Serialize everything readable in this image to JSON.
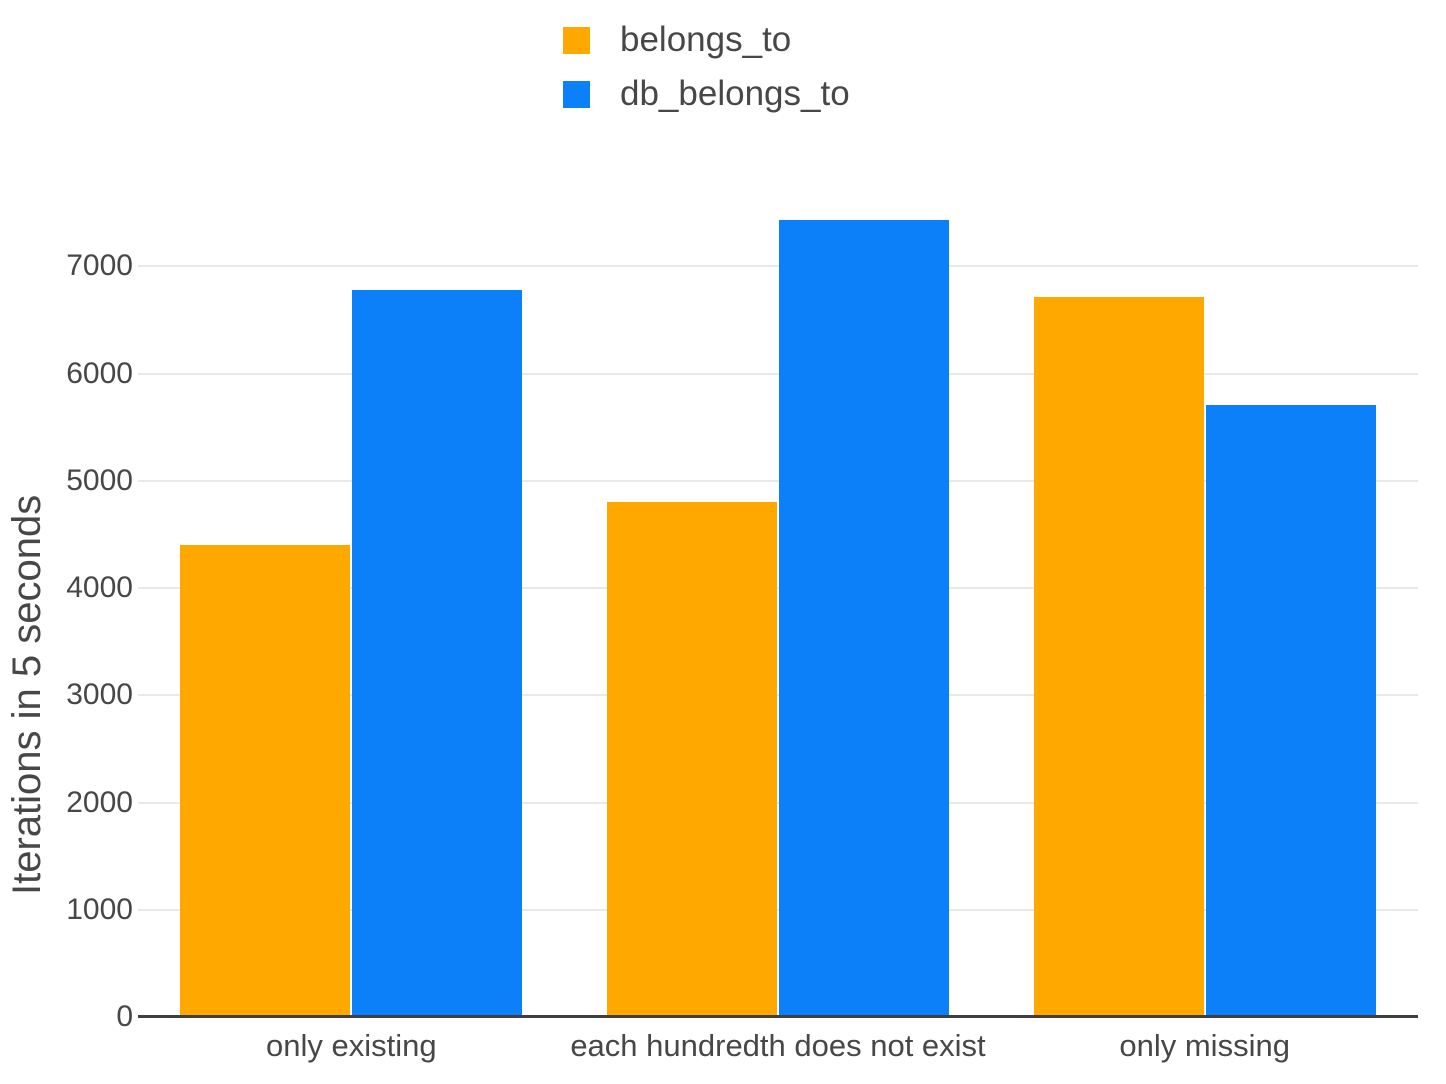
{
  "chart_data": {
    "type": "bar",
    "categories": [
      "only existing",
      "each hundredth does not exist",
      "only missing"
    ],
    "series": [
      {
        "name": "belongs_to",
        "color": "#ffa800",
        "values": [
          4400,
          4800,
          6720
        ]
      },
      {
        "name": "db_belongs_to",
        "color": "#0b80f8",
        "values": [
          6780,
          7430,
          5710
        ]
      }
    ],
    "title": "",
    "xlabel": "",
    "ylabel": "Iterations in 5 seconds",
    "yticks": [
      0,
      1000,
      2000,
      3000,
      4000,
      5000,
      6000,
      7000
    ],
    "ylim": [
      0,
      7900
    ],
    "grid": true,
    "legend_position": "top-center"
  },
  "colors": {
    "background": "#ffffff",
    "grid": "#e9e9e9",
    "axis": "#3f3f3f",
    "text": "#474747"
  }
}
